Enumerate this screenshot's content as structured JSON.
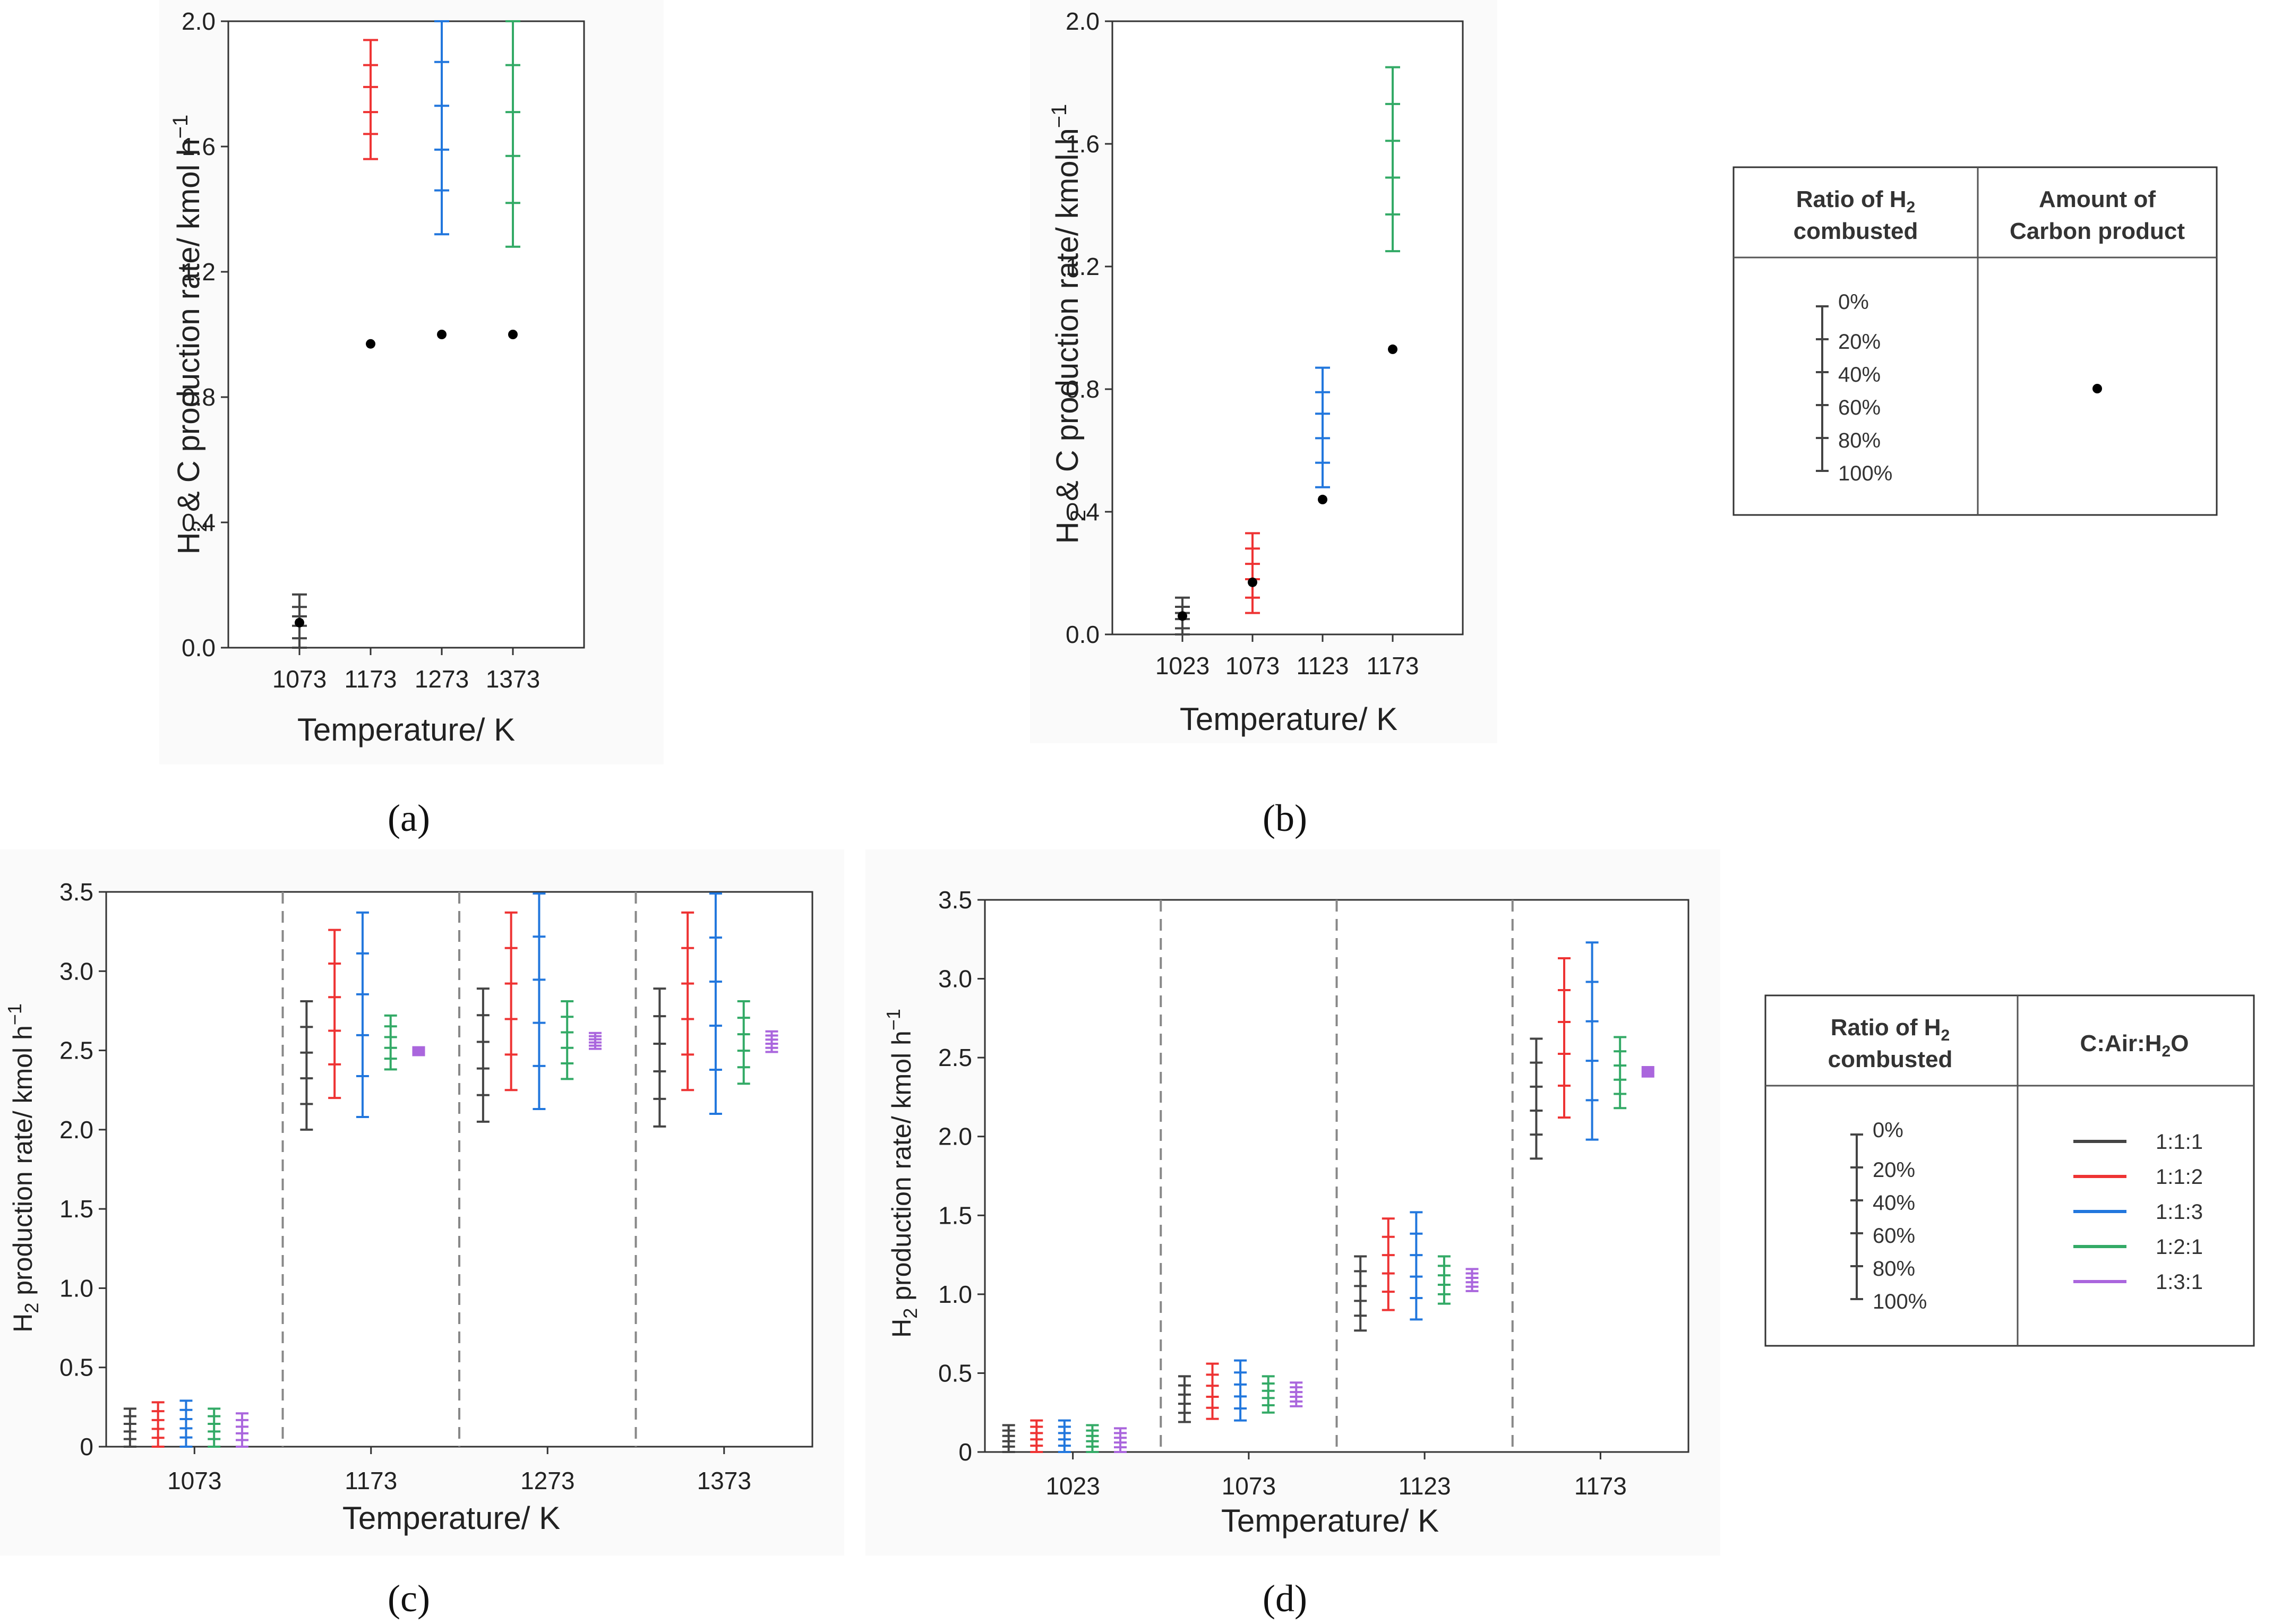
{
  "colors": {
    "1:1:1": "#444444",
    "1:1:2": "#ee3333",
    "1:1:3": "#2277dd",
    "1:2:1": "#33aa66",
    "1:3:1": "#aa66dd",
    "carbon": "#000000"
  },
  "captions": [
    "(a)",
    "(b)",
    "(c)",
    "(d)"
  ],
  "legend_top": {
    "col1_line1": "Ratio of H",
    "col1_sub": "2",
    "col1_line2": "combusted",
    "col2_line1": "Amount of",
    "col2_line2": "Carbon product",
    "ratios": [
      "0%",
      "20%",
      "40%",
      "60%",
      "80%",
      "100%"
    ]
  },
  "legend_bottom": {
    "col1_line1": "Ratio of H",
    "col1_sub": "2",
    "col1_line2": "combusted",
    "col2_title": "C:Air:H",
    "col2_sub": "2",
    "col2_tail": "O",
    "ratios": [
      "0%",
      "20%",
      "40%",
      "60%",
      "80%",
      "100%"
    ],
    "series": [
      "1:1:1",
      "1:1:2",
      "1:1:3",
      "1:2:1",
      "1:3:1"
    ]
  },
  "chart_data": [
    {
      "id": "a",
      "type": "scatter",
      "xlabel": "Temperature/ K",
      "ylabel": "H2 & C production rate/ kmol h-1",
      "categories": [
        "1073",
        "1173",
        "1273",
        "1373"
      ],
      "ylim": [
        0,
        2.0
      ],
      "yticks": [
        "0.0",
        "0.4",
        "0.8",
        "1.2",
        "1.6",
        "2.0"
      ],
      "series": [
        {
          "series_key": "1:1:1",
          "category": "1073",
          "h2_at_ratio": [
            0.17,
            0.13,
            0.1,
            0.07,
            0.03,
            0.0
          ]
        },
        {
          "series_key": "1:1:2",
          "category": "1173",
          "h2_at_ratio": [
            1.94,
            1.86,
            1.79,
            1.71,
            1.64,
            1.56
          ]
        },
        {
          "series_key": "1:1:3",
          "category": "1273",
          "h2_at_ratio": [
            2.0,
            1.87,
            1.73,
            1.59,
            1.46,
            1.32
          ]
        },
        {
          "series_key": "1:2:1",
          "category": "1373",
          "h2_at_ratio": [
            2.0,
            1.86,
            1.71,
            1.57,
            1.42,
            1.28
          ]
        }
      ],
      "carbon": [
        0.08,
        0.97,
        1.0,
        1.0
      ]
    },
    {
      "id": "b",
      "type": "scatter",
      "xlabel": "Temperature/ K",
      "ylabel": "H2 & C production rate/ kmol h-1",
      "categories": [
        "1023",
        "1073",
        "1123",
        "1173"
      ],
      "ylim": [
        0,
        2.0
      ],
      "yticks": [
        "0.0",
        "0.4",
        "0.8",
        "1.2",
        "1.6",
        "2.0"
      ],
      "series": [
        {
          "series_key": "1:1:1",
          "category": "1023",
          "h2_at_ratio": [
            0.12,
            0.09,
            0.07,
            0.05,
            0.02,
            0.0
          ]
        },
        {
          "series_key": "1:1:2",
          "category": "1073",
          "h2_at_ratio": [
            0.33,
            0.28,
            0.23,
            0.18,
            0.12,
            0.07
          ]
        },
        {
          "series_key": "1:1:3",
          "category": "1123",
          "h2_at_ratio": [
            0.87,
            0.79,
            0.72,
            0.64,
            0.56,
            0.48
          ]
        },
        {
          "series_key": "1:2:1",
          "category": "1173",
          "h2_at_ratio": [
            1.85,
            1.73,
            1.61,
            1.49,
            1.37,
            1.25
          ]
        }
      ],
      "carbon": [
        0.06,
        0.17,
        0.44,
        0.93
      ]
    },
    {
      "id": "c",
      "type": "scatter",
      "xlabel": "Temperature/ K",
      "ylabel": "H2 production rate/ kmol h-1",
      "categories": [
        "1073",
        "1173",
        "1273",
        "1373"
      ],
      "ylim": [
        0,
        3.5
      ],
      "yticks": [
        "0",
        "0.5",
        "1.0",
        "1.5",
        "2.0",
        "2.5",
        "3.0",
        "3.5"
      ],
      "series_names": [
        "1:1:1",
        "1:1:2",
        "1:1:3",
        "1:2:1",
        "1:3:1"
      ],
      "ranges": [
        [
          [
            0.24,
            0
          ],
          [
            0.28,
            0
          ],
          [
            0.29,
            0
          ],
          [
            0.24,
            0
          ],
          [
            0.21,
            0
          ]
        ],
        [
          [
            2.81,
            2.0
          ],
          [
            3.26,
            2.2
          ],
          [
            3.37,
            2.08
          ],
          [
            2.72,
            2.38
          ],
          [
            2.52,
            2.47
          ]
        ],
        [
          [
            2.89,
            2.05
          ],
          [
            3.37,
            2.25
          ],
          [
            3.49,
            2.13
          ],
          [
            2.81,
            2.32
          ],
          [
            2.61,
            2.51
          ]
        ],
        [
          [
            2.89,
            2.02
          ],
          [
            3.37,
            2.25
          ],
          [
            3.49,
            2.1
          ],
          [
            2.81,
            2.29
          ],
          [
            2.62,
            2.49
          ]
        ]
      ]
    },
    {
      "id": "d",
      "type": "scatter",
      "xlabel": "Temperature/ K",
      "ylabel": "H2 production rate/ kmol h-1",
      "categories": [
        "1023",
        "1073",
        "1123",
        "1173"
      ],
      "ylim": [
        0,
        3.5
      ],
      "yticks": [
        "0",
        "0.5",
        "1.0",
        "1.5",
        "2.0",
        "2.5",
        "3.0",
        "3.5"
      ],
      "series_names": [
        "1:1:1",
        "1:1:2",
        "1:1:3",
        "1:2:1",
        "1:3:1"
      ],
      "ranges": [
        [
          [
            0.17,
            0
          ],
          [
            0.2,
            0
          ],
          [
            0.2,
            0
          ],
          [
            0.17,
            0
          ],
          [
            0.15,
            0
          ]
        ],
        [
          [
            0.48,
            0.19
          ],
          [
            0.56,
            0.21
          ],
          [
            0.58,
            0.2
          ],
          [
            0.48,
            0.25
          ],
          [
            0.44,
            0.29
          ]
        ],
        [
          [
            1.24,
            0.77
          ],
          [
            1.48,
            0.9
          ],
          [
            1.52,
            0.84
          ],
          [
            1.24,
            0.94
          ],
          [
            1.16,
            1.02
          ]
        ],
        [
          [
            2.62,
            1.86
          ],
          [
            3.13,
            2.12
          ],
          [
            3.23,
            1.98
          ],
          [
            2.63,
            2.18
          ],
          [
            2.44,
            2.38
          ]
        ]
      ]
    }
  ]
}
